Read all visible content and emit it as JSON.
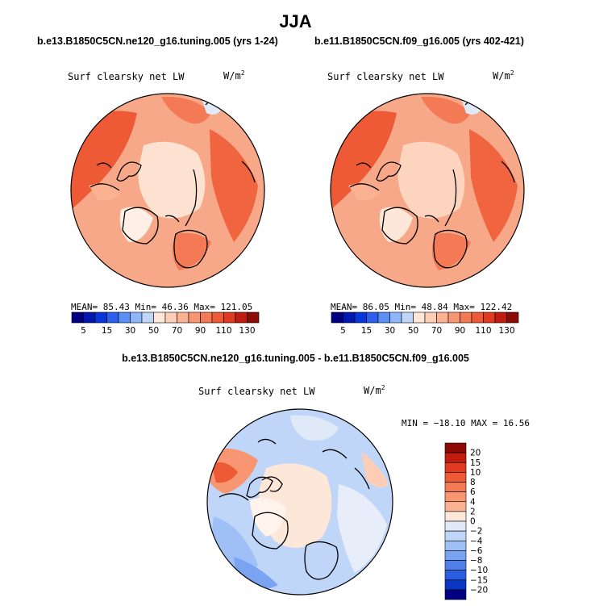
{
  "page": {
    "season_title": "JJA",
    "left_case_title": "b.e13.B1850C5CN.ne120_g16.tuning.005 (yrs 1-24)",
    "right_case_title": "b.e11.B1850C5CN.f09_g16.005 (yrs 402-421)",
    "diff_title": "b.e13.B1850C5CN.ne120_g16.tuning.005 - b.e11.B1850C5CN.f09_g16.005"
  },
  "chart_data": [
    {
      "type": "heatmap",
      "projection": "polar-stereographic (north pole)",
      "variable_label": "Surf clearsky net LW",
      "units_label": "W/m",
      "units_exponent": "2",
      "stats": {
        "mean_label": "MEAN=",
        "mean": "85.43",
        "min_label": "Min=",
        "min": "46.36",
        "max_label": "Max=",
        "max": "121.05"
      },
      "colorbar": {
        "levels": [
          5,
          15,
          30,
          50,
          70,
          90,
          110,
          130
        ],
        "level_labels": [
          "5",
          "15",
          "30",
          "50",
          "70",
          "90",
          "110",
          "130"
        ],
        "colors": [
          "#000080",
          "#0018b0",
          "#0836d8",
          "#2b60ef",
          "#5c8ff5",
          "#8fb6f8",
          "#c0d6f9",
          "#fde7d9",
          "#fdcdb5",
          "#fbb293",
          "#f89672",
          "#f47a55",
          "#ee5a35",
          "#e03a20",
          "#c01d10",
          "#8e0a05"
        ]
      }
    },
    {
      "type": "heatmap",
      "projection": "polar-stereographic (north pole)",
      "variable_label": "Surf clearsky net LW",
      "units_label": "W/m",
      "units_exponent": "2",
      "stats": {
        "mean_label": "MEAN=",
        "mean": "86.05",
        "min_label": "Min=",
        "min": "48.84",
        "max_label": "Max=",
        "max": "122.42"
      },
      "colorbar": {
        "levels": [
          5,
          15,
          30,
          50,
          70,
          90,
          110,
          130
        ],
        "level_labels": [
          "5",
          "15",
          "30",
          "50",
          "70",
          "90",
          "110",
          "130"
        ],
        "colors": [
          "#000080",
          "#0018b0",
          "#0836d8",
          "#2b60ef",
          "#5c8ff5",
          "#8fb6f8",
          "#c0d6f9",
          "#fde7d9",
          "#fdcdb5",
          "#fbb293",
          "#f89672",
          "#f47a55",
          "#ee5a35",
          "#e03a20",
          "#c01d10",
          "#8e0a05"
        ]
      }
    },
    {
      "type": "heatmap",
      "projection": "polar-stereographic (north pole)",
      "variable_label": "Surf clearsky net LW",
      "units_label": "W/m",
      "units_exponent": "2",
      "stats": {
        "text": "MIN = −18.10 MAX =  16.56",
        "min": -18.1,
        "max": 16.56
      },
      "colorbar": {
        "levels_top_to_bottom": [
          20,
          15,
          10,
          8,
          6,
          4,
          2,
          0,
          -2,
          -4,
          -6,
          -8,
          -10,
          -15,
          -20
        ],
        "level_labels": [
          "20",
          "15",
          "10",
          "8",
          "6",
          "4",
          "2",
          "0",
          "−2",
          "−4",
          "−6",
          "−8",
          "−10",
          "−15",
          "−20"
        ],
        "colors_top_to_bottom": [
          "#8e0a05",
          "#c01d10",
          "#e03a20",
          "#ee5a35",
          "#f47a55",
          "#f89672",
          "#fbb293",
          "#fde7d9",
          "#dfe9f7",
          "#c0d6f9",
          "#9fc0f7",
          "#7aa3f2",
          "#4f7fea",
          "#2b5de0",
          "#0a36c4",
          "#000080"
        ]
      }
    }
  ]
}
